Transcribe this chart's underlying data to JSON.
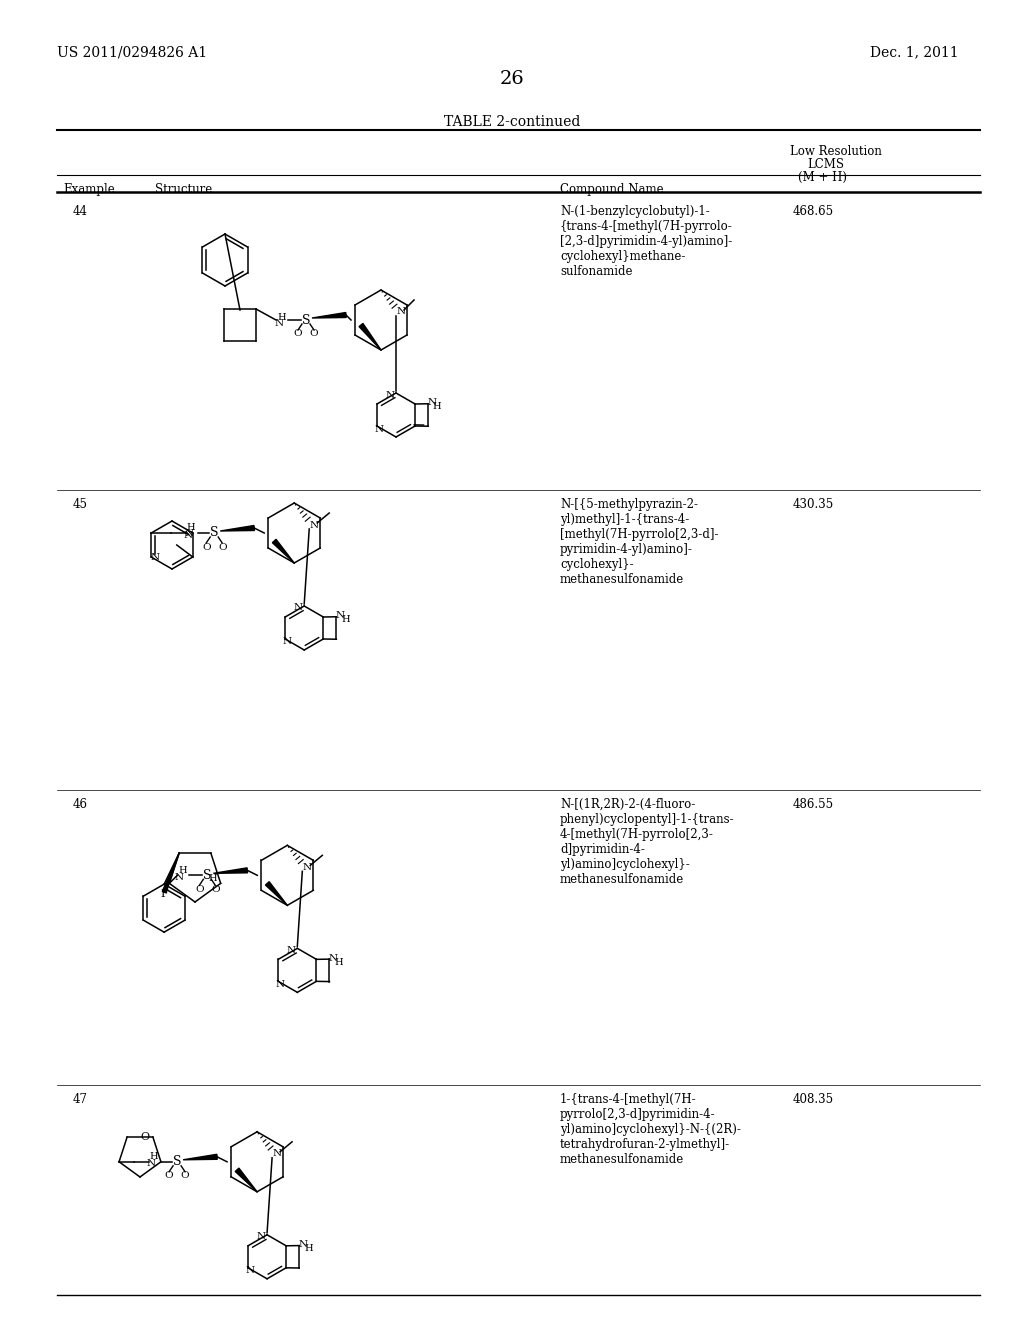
{
  "patent_number": "US 2011/0294826 A1",
  "date": "Dec. 1, 2011",
  "page_number": "26",
  "table_title": "TABLE 2-continued",
  "rows": [
    {
      "example": "44",
      "compound_name": "N-(1-benzylcyclobutyl)-1-\n{trans-4-[methyl(7H-pyrrolo-\n[2,3-d]pyrimidin-4-yl)amino]-\ncyclohexyl}methane-\nsulfonamide",
      "lcms": "468.65"
    },
    {
      "example": "45",
      "compound_name": "N-[{5-methylpyrazin-2-\nyl)methyl]-1-{trans-4-\n[methyl(7H-pyrrolo[2,3-d]-\npyrimidin-4-yl)amino]-\ncyclohexyl}-\nmethanesulfonamide",
      "lcms": "430.35"
    },
    {
      "example": "46",
      "compound_name": "N-[(1R,2R)-2-(4-fluoro-\nphenyl)cyclopentyl]-1-{trans-\n4-[methyl(7H-pyrrolo[2,3-\nd]pyrimidin-4-\nyl)amino]cyclohexyl}-\nmethanesulfonamide",
      "lcms": "486.55"
    },
    {
      "example": "47",
      "compound_name": "1-{trans-4-[methyl(7H-\npyrrolo[2,3-d]pyrimidin-4-\nyl)amino]cyclohexyl}-N-{(2R)-\ntetrahydrofuran-2-ylmethyl]-\nmethanesulfonamide",
      "lcms": "408.35"
    }
  ]
}
